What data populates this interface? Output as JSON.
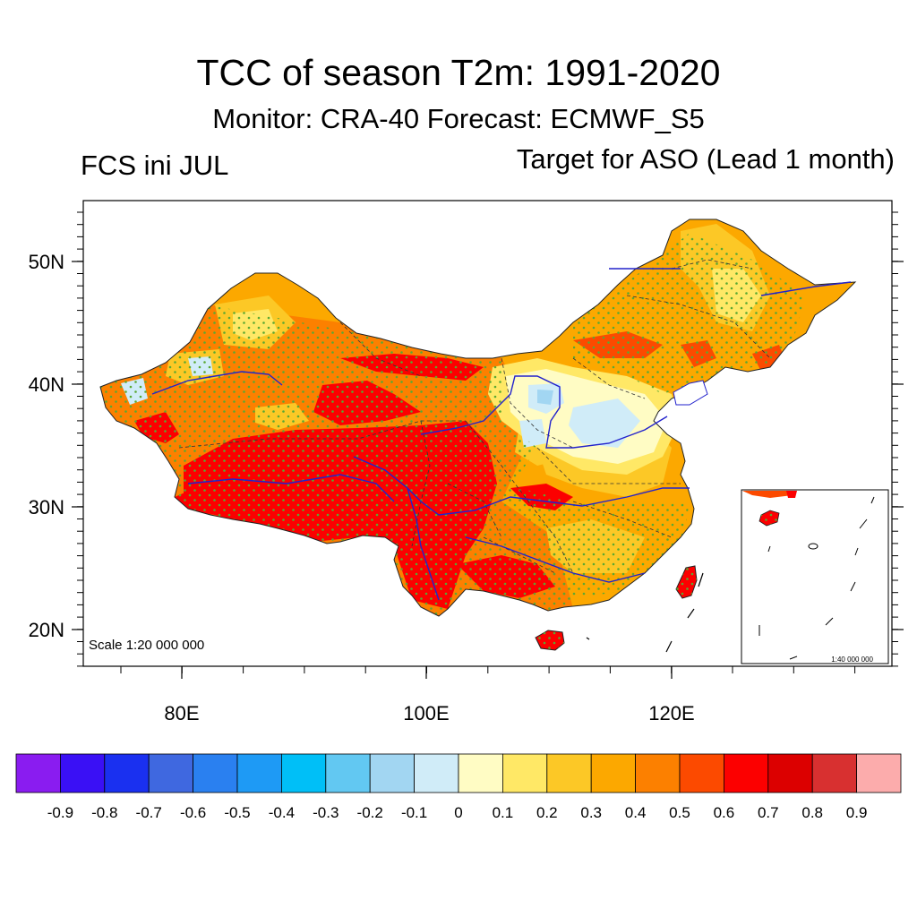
{
  "title": "TCC of season T2m: 1991-2020",
  "subtitle": "Monitor: CRA-40   Forecast: ECMWF_S5",
  "left_label": "FCS ini JUL",
  "right_label": "Target for ASO (Lead 1 month)",
  "scale_main": "Scale 1:20 000 000",
  "scale_inset": "1:40 000 000",
  "lat_labels": [
    "50N",
    "40N",
    "30N",
    "20N"
  ],
  "lon_labels": [
    "80E",
    "100E",
    "120E"
  ],
  "colorbar": {
    "labels": [
      "-0.9",
      "-0.8",
      "-0.7",
      "-0.6",
      "-0.5",
      "-0.4",
      "-0.3",
      "-0.2",
      "-0.1",
      "0",
      "0.1",
      "0.2",
      "0.3",
      "0.4",
      "0.5",
      "0.6",
      "0.7",
      "0.8",
      "0.9"
    ],
    "colors": [
      "#8a1cf0",
      "#3a10f5",
      "#1a30f0",
      "#3f68e0",
      "#2a80f0",
      "#1e9af5",
      "#00bff7",
      "#62c8f2",
      "#a2d6f2",
      "#d0ecf8",
      "#fffcc4",
      "#ffe866",
      "#fcc826",
      "#fca800",
      "#fc8000",
      "#fc4a00",
      "#fc0000",
      "#dc0000",
      "#d83030",
      "#fcacac"
    ]
  },
  "chart_data": {
    "type": "map",
    "region": "China",
    "lat_range": [
      17,
      55
    ],
    "lon_range": [
      72,
      138
    ],
    "lat_ticks": [
      "50N",
      "40N",
      "30N",
      "20N"
    ],
    "lon_ticks": [
      "80E",
      "100E",
      "120E"
    ],
    "variable": "TCC of season T2m",
    "levels": [
      -0.9,
      -0.8,
      -0.7,
      -0.6,
      -0.5,
      -0.4,
      -0.3,
      -0.2,
      -0.1,
      0,
      0.1,
      0.2,
      0.3,
      0.4,
      0.5,
      0.6,
      0.7,
      0.8,
      0.9
    ],
    "stippling": "green dots mark significant correlation"
  }
}
